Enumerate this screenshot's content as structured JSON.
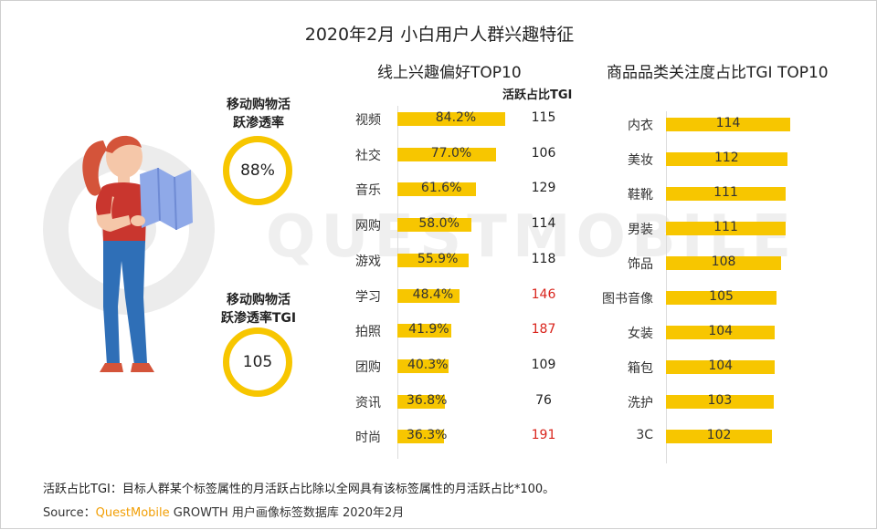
{
  "title": "2020年2月 小白用户人群兴趣特征",
  "kpis": [
    {
      "label_line1": "移动购物活",
      "label_line2": "跃渗透率",
      "value": "88%"
    },
    {
      "label_line1": "移动购物活",
      "label_line2": "跃渗透率TGI",
      "value": "105"
    }
  ],
  "chart_data": [
    {
      "type": "bar",
      "orientation": "horizontal",
      "title": "线上兴趣偏好TOP10",
      "categories": [
        "视频",
        "社交",
        "音乐",
        "网购",
        "游戏",
        "学习",
        "拍照",
        "团购",
        "资讯",
        "时尚"
      ],
      "values": [
        84.2,
        77.0,
        61.6,
        58.0,
        55.9,
        48.4,
        41.9,
        40.3,
        36.8,
        36.3
      ],
      "value_labels": [
        "84.2%",
        "77.0%",
        "61.6%",
        "58.0%",
        "55.9%",
        "48.4%",
        "41.9%",
        "40.3%",
        "36.8%",
        "36.3%"
      ],
      "xlim": [
        0,
        100
      ],
      "secondary_column": {
        "header": "活跃占比TGI",
        "values": [
          115,
          106,
          129,
          114,
          118,
          146,
          187,
          109,
          76,
          191
        ],
        "highlighted": [
          false,
          false,
          false,
          false,
          false,
          true,
          true,
          false,
          false,
          true
        ]
      },
      "colors": {
        "bar": "#F7C600",
        "highlight": "#D9241C",
        "normal": "#222222"
      }
    },
    {
      "type": "bar",
      "orientation": "horizontal",
      "title": "商品品类关注度占比TGI TOP10",
      "categories": [
        "内衣",
        "美妆",
        "鞋靴",
        "男装",
        "饰品",
        "图书音像",
        "女装",
        "箱包",
        "洗护",
        "3C"
      ],
      "values": [
        114,
        112,
        111,
        111,
        108,
        105,
        104,
        104,
        103,
        102
      ],
      "xlim": [
        0,
        120
      ],
      "colors": {
        "bar": "#F7C600"
      }
    }
  ],
  "footnote": "活跃占比TGI：目标人群某个标签属性的月活跃占比除以全网具有该标签属性的月活跃占比*100。",
  "source": {
    "prefix": "Source：",
    "brand": "QuestMobile",
    "rest": " GROWTH 用户画像标签数据库 2020年2月"
  },
  "watermark": "QUESTMOBILE"
}
